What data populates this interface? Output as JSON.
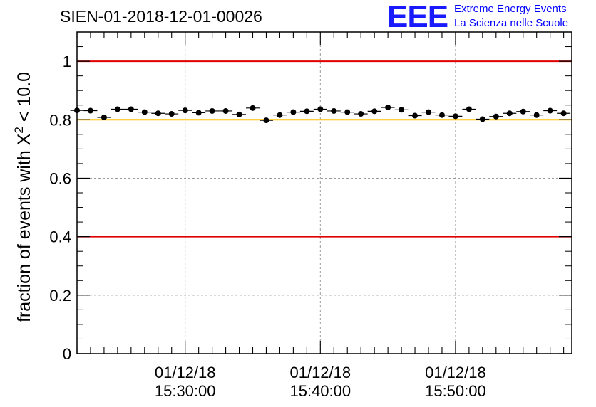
{
  "chart_data": {
    "type": "scatter",
    "title": "SIEN-01-2018-12-01-00026",
    "ylabel": "fraction of events with X",
    "ylabel_superscript": "2",
    "ylabel_suffix": "< 10.0",
    "xlabel": "",
    "ylim": [
      0,
      1.1
    ],
    "xlim_minutes": [
      22.0,
      58.6
    ],
    "yticks": [
      0,
      0.2,
      0.4,
      0.6,
      0.8,
      1
    ],
    "ytick_labels": [
      "0",
      "0.2",
      "0.4",
      "0.6",
      "0.8",
      "1"
    ],
    "xticks_minutes": [
      30,
      40,
      50
    ],
    "xtick_dates": [
      "01/12/18",
      "01/12/18",
      "01/12/18"
    ],
    "xtick_times": [
      "15:30:00",
      "15:40:00",
      "15:50:00"
    ],
    "grid": true,
    "reference_lines": [
      {
        "value": 1.0,
        "color": "#e00000"
      },
      {
        "value": 0.8,
        "color": "#ffc000"
      },
      {
        "value": 0.4,
        "color": "#e00000"
      }
    ],
    "bin_width_minutes": 1.0,
    "series": [
      {
        "name": "fraction",
        "x_minutes": [
          22.0,
          23.0,
          24.0,
          25.0,
          26.0,
          27.0,
          28.0,
          29.0,
          30.0,
          31.0,
          32.0,
          33.0,
          34.0,
          35.0,
          36.0,
          37.0,
          38.0,
          39.0,
          40.0,
          41.0,
          42.0,
          43.0,
          44.0,
          45.0,
          46.0,
          47.0,
          48.0,
          49.0,
          50.0,
          51.0,
          52.0,
          53.0,
          54.0,
          55.0,
          56.0,
          57.0,
          58.0
        ],
        "values": [
          0.832,
          0.831,
          0.808,
          0.836,
          0.836,
          0.826,
          0.822,
          0.82,
          0.832,
          0.824,
          0.83,
          0.83,
          0.818,
          0.84,
          0.798,
          0.816,
          0.826,
          0.829,
          0.836,
          0.83,
          0.826,
          0.82,
          0.829,
          0.842,
          0.834,
          0.814,
          0.826,
          0.816,
          0.812,
          0.836,
          0.802,
          0.811,
          0.822,
          0.828,
          0.816,
          0.831,
          0.822
        ],
        "error": 0.006
      }
    ]
  },
  "logo": {
    "mark": "EEE",
    "line1": "Extreme Energy Events",
    "line2": "La Scienza nelle Scuole"
  }
}
